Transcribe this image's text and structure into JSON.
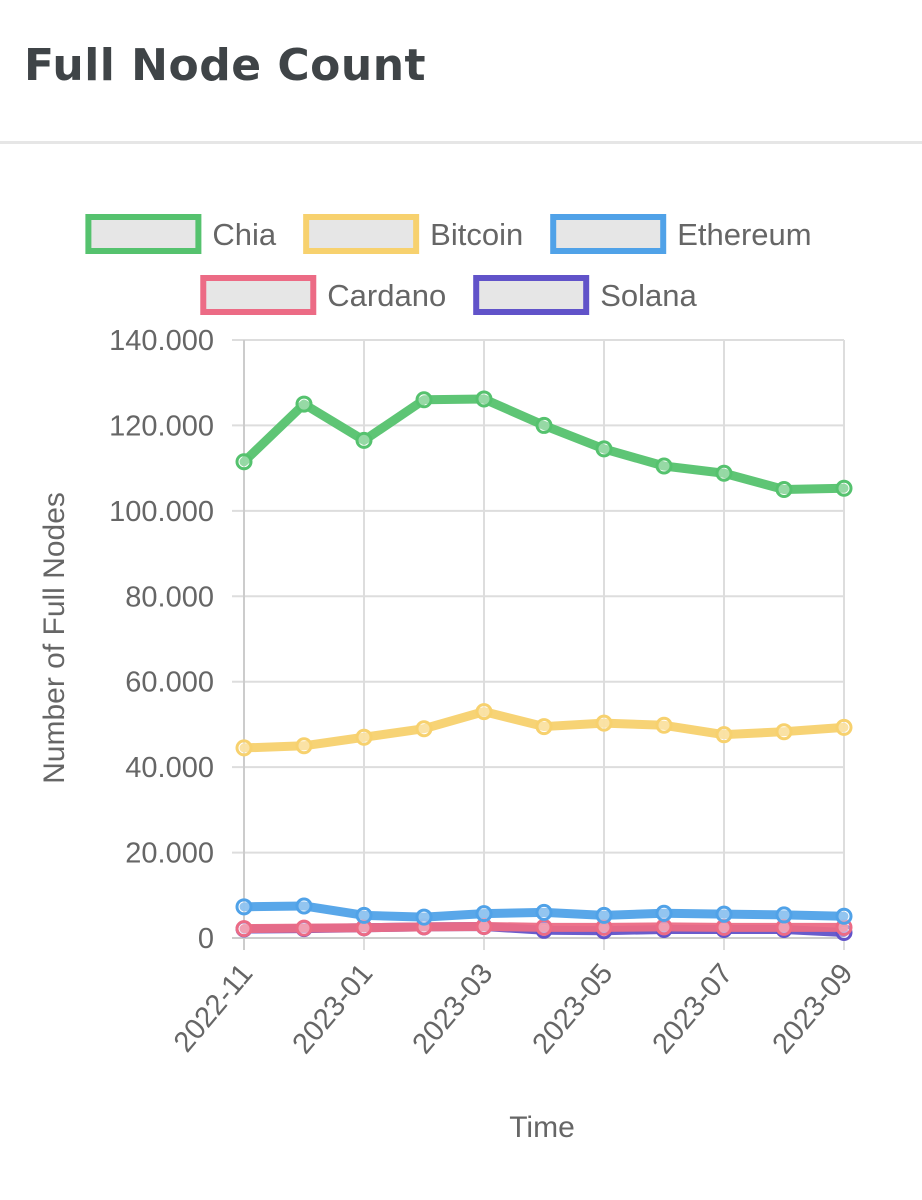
{
  "card": {
    "title": "Full Node Count"
  },
  "chart_data": {
    "type": "line",
    "title": "",
    "xlabel": "Time",
    "ylabel": "Number of Full Nodes",
    "x": [
      "2022-11",
      "2022-12",
      "2023-01",
      "2023-02",
      "2023-03",
      "2023-04",
      "2023-05",
      "2023-06",
      "2023-07",
      "2023-08",
      "2023-09"
    ],
    "x_tick_labels": [
      "2022-11",
      "2023-01",
      "2023-03",
      "2023-05",
      "2023-07",
      "2023-09"
    ],
    "y_ticks": [
      0,
      20000,
      40000,
      60000,
      80000,
      100000,
      120000,
      140000
    ],
    "y_tick_labels": [
      "0",
      "20.000",
      "40.000",
      "60.000",
      "80.000",
      "100.000",
      "120.000",
      "140.000"
    ],
    "ylim": [
      0,
      140000
    ],
    "grid": true,
    "legend_position": "top",
    "series": [
      {
        "name": "Chia",
        "color": "#55c26e",
        "values": [
          111500,
          125000,
          116500,
          126000,
          126200,
          120000,
          114500,
          110500,
          108800,
          105000,
          105300
        ]
      },
      {
        "name": "Bitcoin",
        "color": "#f7d16e",
        "values": [
          44500,
          45000,
          47000,
          49000,
          53000,
          49500,
          50300,
          49800,
          47600,
          48300,
          49300
        ]
      },
      {
        "name": "Ethereum",
        "color": "#50a2e8",
        "values": [
          7300,
          7500,
          5300,
          4900,
          5700,
          6000,
          5300,
          5800,
          5600,
          5400,
          5100
        ]
      },
      {
        "name": "Cardano",
        "color": "#ec6b85",
        "values": [
          2200,
          2300,
          2400,
          2600,
          2700,
          2500,
          2500,
          2600,
          2500,
          2500,
          2500
        ]
      },
      {
        "name": "Solana",
        "color": "#6153c9",
        "values": [
          2100,
          2200,
          2400,
          2600,
          2700,
          1800,
          1700,
          2000,
          2000,
          2000,
          1300
        ]
      }
    ]
  }
}
